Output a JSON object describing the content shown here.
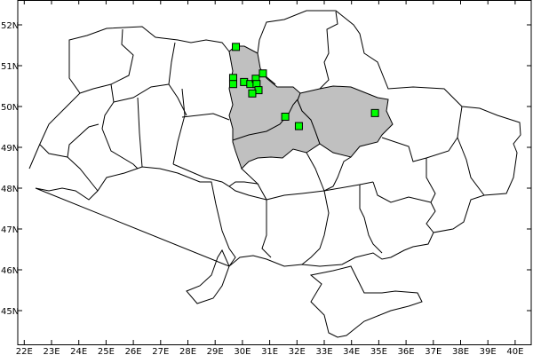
{
  "map": {
    "lon_ticks": [
      "22E",
      "23E",
      "24E",
      "25E",
      "26E",
      "27E",
      "28E",
      "29E",
      "30E",
      "31E",
      "32E",
      "33E",
      "34E",
      "35E",
      "36E",
      "37E",
      "38E",
      "39E",
      "40E"
    ],
    "lat_ticks": [
      "52N",
      "51N",
      "50N",
      "49N",
      "48N",
      "47N",
      "46N",
      "45N"
    ],
    "lon_range": [
      22,
      40
    ],
    "lat_range": [
      45,
      52
    ],
    "colors": {
      "highlight_fill": "#c0c0c0",
      "point_fill": "#00ff00",
      "border": "#000000",
      "background": "#ffffff"
    },
    "point_marker": "square",
    "points": [
      {
        "lon": 29.76,
        "lat": 51.46
      },
      {
        "lon": 29.66,
        "lat": 50.7
      },
      {
        "lon": 29.66,
        "lat": 50.55
      },
      {
        "lon": 30.06,
        "lat": 50.6
      },
      {
        "lon": 30.29,
        "lat": 50.55
      },
      {
        "lon": 30.49,
        "lat": 50.68
      },
      {
        "lon": 30.52,
        "lat": 50.55
      },
      {
        "lon": 30.59,
        "lat": 50.4
      },
      {
        "lon": 30.36,
        "lat": 50.32
      },
      {
        "lon": 30.75,
        "lat": 50.81
      },
      {
        "lon": 31.57,
        "lat": 49.75
      },
      {
        "lon": 32.07,
        "lat": 49.52
      },
      {
        "lon": 34.86,
        "lat": 49.84
      }
    ]
  }
}
